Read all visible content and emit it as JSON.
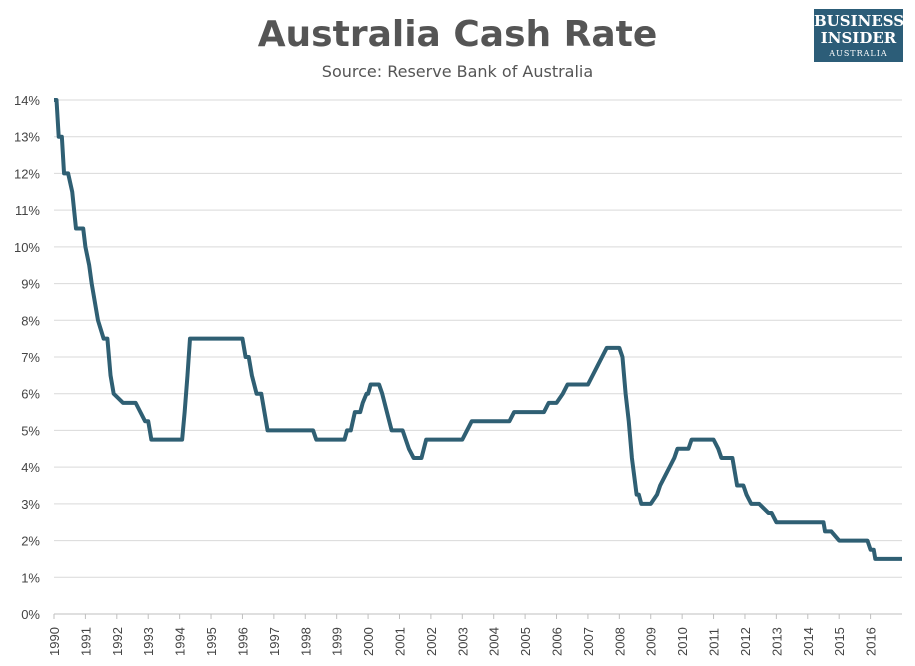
{
  "title": "Australia Cash Rate",
  "subtitle": "Source: Reserve Bank of Australia",
  "logo": {
    "line1": "BUSINESS",
    "line2": "INSIDER",
    "line3": "AUSTRALIA",
    "bg": "#2c5d78"
  },
  "chart_data": {
    "type": "line",
    "title": "Australia Cash Rate",
    "subtitle": "Source: Reserve Bank of Australia",
    "xlabel": "",
    "ylabel": "",
    "xlim": [
      1990,
      2017
    ],
    "ylim": [
      0,
      14
    ],
    "grid": true,
    "y_ticks": [
      "0%",
      "1%",
      "2%",
      "3%",
      "4%",
      "5%",
      "6%",
      "7%",
      "8%",
      "9%",
      "10%",
      "11%",
      "12%",
      "13%",
      "14%"
    ],
    "x_ticks": [
      "1990",
      "1991",
      "1992",
      "1993",
      "1994",
      "1995",
      "1996",
      "1997",
      "1998",
      "1999",
      "2000",
      "2001",
      "2002",
      "2003",
      "2004",
      "2005",
      "2006",
      "2007",
      "2008",
      "2009",
      "2010",
      "2011",
      "2012",
      "2013",
      "2014",
      "2015",
      "2016"
    ],
    "line_color": "#2f5f73",
    "series": [
      {
        "x": [
          1990.0,
          1990.08,
          1990.15,
          1990.25,
          1990.32,
          1990.45,
          1990.58,
          1990.7,
          1990.93,
          1991.0,
          1991.12,
          1991.2,
          1991.3,
          1991.4,
          1991.58,
          1991.7,
          1991.8,
          1991.9,
          1992.2,
          1992.5,
          1992.6,
          1992.9,
          1993.0,
          1993.05,
          1993.1,
          1994.08,
          1994.16,
          1994.25,
          1994.33,
          1995.9,
          1996.0,
          1996.1,
          1996.2,
          1996.3,
          1996.45,
          1996.6,
          1996.7,
          1996.8,
          1997.0,
          1998.0,
          1998.25,
          1998.35,
          1999.25,
          1999.33,
          1999.45,
          1999.58,
          1999.75,
          1999.83,
          1999.95,
          2000.0,
          2000.08,
          2000.35,
          2000.45,
          2000.6,
          2000.75,
          2001.0,
          2001.1,
          2001.2,
          2001.3,
          2001.45,
          2001.6,
          2001.7,
          2001.85,
          2002.0,
          2003.0,
          2003.15,
          2003.3,
          2004.0,
          2004.5,
          2004.65,
          2005.0,
          2005.5,
          2005.6,
          2005.75,
          2006.0,
          2006.2,
          2006.35,
          2006.6,
          2007.0,
          2007.15,
          2007.3,
          2007.45,
          2007.6,
          2007.75,
          2007.9,
          2008.0,
          2008.1,
          2008.2,
          2008.3,
          2008.4,
          2008.55,
          2008.62,
          2008.7,
          2008.8,
          2009.0,
          2009.2,
          2009.3,
          2009.45,
          2009.6,
          2009.75,
          2009.85,
          2010.0,
          2010.2,
          2010.3,
          2011.0,
          2011.15,
          2011.25,
          2011.45,
          2011.6,
          2011.7,
          2011.75,
          2011.85,
          2011.95,
          2012.05,
          2012.2,
          2012.35,
          2012.45,
          2012.75,
          2012.85,
          2013.0,
          2013.35,
          2013.45,
          2014.0,
          2014.3,
          2014.5,
          2014.55,
          2014.65,
          2014.75,
          2015.0,
          2015.8,
          2015.9,
          2016.0,
          2016.1,
          2016.15,
          2016.4,
          2016.6,
          2017.0
        ],
        "values": [
          14.0,
          14.0,
          13.0,
          13.0,
          12.0,
          12.0,
          11.5,
          10.5,
          10.5,
          10.0,
          9.5,
          9.0,
          8.5,
          8.0,
          7.5,
          7.5,
          6.5,
          6.0,
          5.75,
          5.75,
          5.75,
          5.25,
          5.25,
          5.0,
          4.75,
          4.75,
          5.5,
          6.5,
          7.5,
          7.5,
          7.5,
          7.0,
          7.0,
          6.5,
          6.0,
          6.0,
          5.5,
          5.0,
          5.0,
          5.0,
          5.0,
          4.75,
          4.75,
          5.0,
          5.0,
          5.5,
          5.5,
          5.75,
          6.0,
          6.0,
          6.25,
          6.25,
          6.0,
          5.5,
          5.0,
          5.0,
          5.0,
          4.75,
          4.5,
          4.25,
          4.25,
          4.25,
          4.75,
          4.75,
          4.75,
          5.0,
          5.25,
          5.25,
          5.25,
          5.5,
          5.5,
          5.5,
          5.5,
          5.75,
          5.75,
          6.0,
          6.25,
          6.25,
          6.25,
          6.5,
          6.75,
          7.0,
          7.25,
          7.25,
          7.25,
          7.25,
          7.0,
          6.0,
          5.25,
          4.25,
          3.25,
          3.25,
          3.0,
          3.0,
          3.0,
          3.25,
          3.5,
          3.75,
          4.0,
          4.25,
          4.5,
          4.5,
          4.5,
          4.75,
          4.75,
          4.5,
          4.25,
          4.25,
          4.25,
          3.75,
          3.5,
          3.5,
          3.5,
          3.25,
          3.0,
          3.0,
          3.0,
          2.75,
          2.75,
          2.5,
          2.5,
          2.5,
          2.5,
          2.5,
          2.5,
          2.25,
          2.25,
          2.25,
          2.0,
          2.0,
          2.0,
          1.75,
          1.75,
          1.5,
          1.5,
          1.5,
          1.5
        ]
      }
    ]
  }
}
